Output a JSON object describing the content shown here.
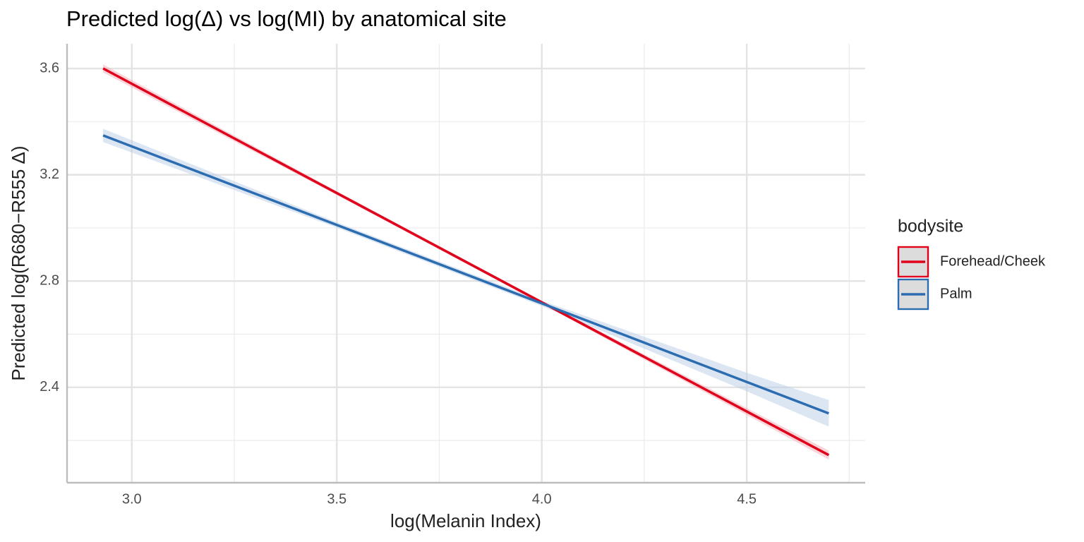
{
  "chart_data": {
    "type": "line",
    "title": "Predicted log(Δ) vs log(MI) by anatomical site",
    "x_label": "log(Melanin Index)",
    "y_label": "Predicted log(R680−R555 Δ)",
    "legend_title": "bodysite",
    "legend_position": "right",
    "grid": true,
    "x": [
      2.93,
      3.5,
      4.0,
      4.5,
      4.7
    ],
    "series": [
      {
        "name": "Forehead/Cheek",
        "color": "#e0001b",
        "ribbon_color": "#f4a9b2",
        "values": [
          3.6,
          3.131,
          2.72,
          2.309,
          2.145
        ],
        "lower": [
          3.585,
          3.124,
          2.714,
          2.296,
          2.128
        ],
        "upper": [
          3.615,
          3.138,
          2.726,
          2.322,
          2.162
        ]
      },
      {
        "name": "Palm",
        "color": "#2c6db2",
        "ribbon_color": "#b9cde6",
        "values": [
          3.348,
          3.011,
          2.716,
          2.42,
          2.302
        ],
        "lower": [
          3.323,
          3.001,
          2.706,
          2.385,
          2.252
        ],
        "upper": [
          3.373,
          3.021,
          2.726,
          2.455,
          2.352
        ]
      }
    ],
    "xlim": [
      2.842,
      4.789
    ],
    "ylim": [
      2.041,
      3.693
    ],
    "xticks": [
      {
        "value": 3.0,
        "label": "3.0"
      },
      3.5,
      {
        "value": 4.0,
        "label": "4.0"
      },
      4.5
    ],
    "yticks": [
      3.6,
      3.2,
      2.8,
      2.4
    ],
    "x_minor_ticks": [
      3.25,
      3.75,
      4.25,
      4.75
    ],
    "y_minor_ticks": [
      3.4,
      3.0,
      2.6,
      2.2
    ]
  }
}
